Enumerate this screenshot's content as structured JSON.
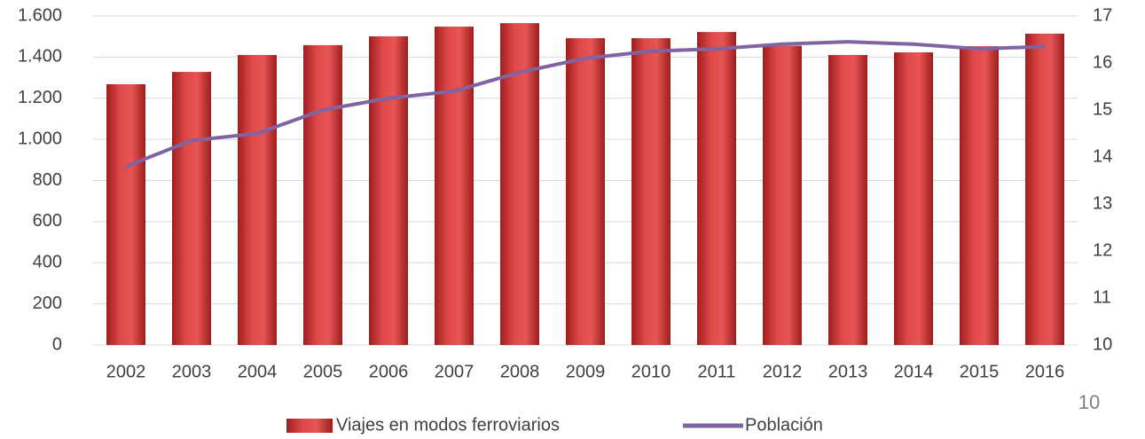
{
  "chart_data": {
    "type": "combo",
    "categories": [
      "2002",
      "2003",
      "2004",
      "2005",
      "2006",
      "2007",
      "2008",
      "2009",
      "2010",
      "2011",
      "2012",
      "2013",
      "2014",
      "2015",
      "2016"
    ],
    "series": [
      {
        "name": "Viajes en modos ferroviarios",
        "type": "bar",
        "color": "#d63b3b",
        "values": [
          1268,
          1328,
          1410,
          1458,
          1501,
          1548,
          1565,
          1492,
          1492,
          1522,
          1455,
          1410,
          1423,
          1453,
          1514
        ]
      },
      {
        "name": "Población",
        "type": "line",
        "axis": "y2",
        "color": "#8064a2",
        "values": [
          13.8,
          14.35,
          14.5,
          15.0,
          15.25,
          15.4,
          15.8,
          16.1,
          16.25,
          16.3,
          16.4,
          16.45,
          16.4,
          16.3,
          16.35
        ]
      }
    ],
    "ylim": [
      0,
      1600
    ],
    "yticks": [
      0,
      200,
      400,
      600,
      800,
      {
        "value": 1000,
        "label": "1.000"
      },
      {
        "value": 1200,
        "label": "1.200"
      },
      {
        "value": 1400,
        "label": "1.400"
      },
      {
        "value": 1600,
        "label": "1.600"
      }
    ],
    "y2lim": [
      10,
      17
    ],
    "y2ticks": [
      10,
      11,
      12,
      13,
      14,
      15,
      16,
      17
    ],
    "grid": true,
    "legend": "bottom"
  },
  "page_number": "10"
}
